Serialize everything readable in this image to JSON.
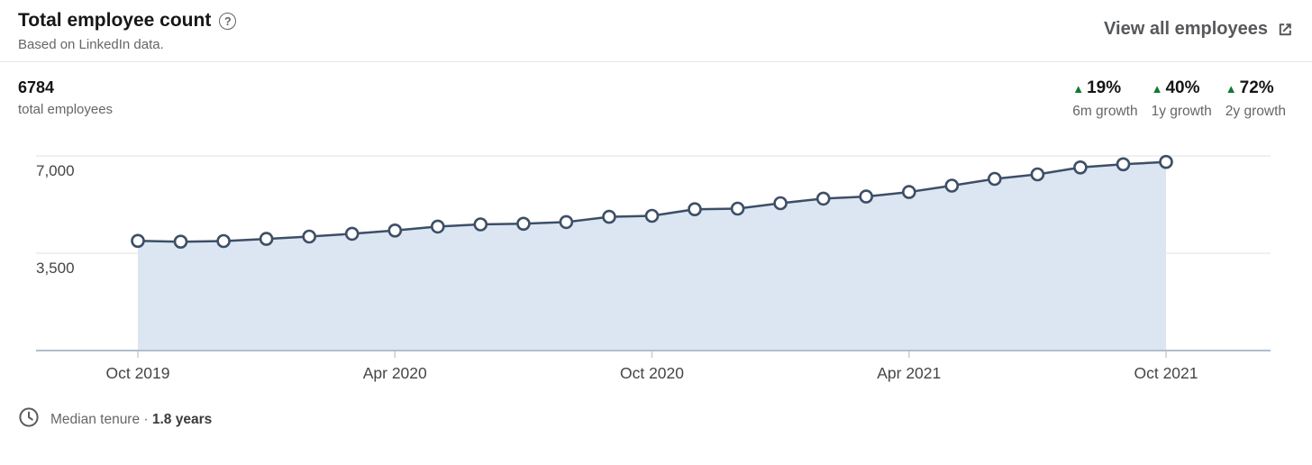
{
  "header": {
    "title": "Total employee count",
    "subtitle": "Based on LinkedIn data.",
    "view_all_label": "View all employees"
  },
  "icons": {
    "help_glyph": "?",
    "up_triangle": "▲"
  },
  "stats": {
    "total_value": "6784",
    "total_label": "total employees",
    "growth": [
      {
        "value": "19%",
        "label": "6m growth",
        "direction": "up"
      },
      {
        "value": "40%",
        "label": "1y growth",
        "direction": "up"
      },
      {
        "value": "72%",
        "label": "2y growth",
        "direction": "up"
      }
    ]
  },
  "colors": {
    "growth_green": "#0e7a31",
    "line": "#3d4f66",
    "area_fill": "#dce6f2",
    "baseline": "#b0becf",
    "gridline": "#e2e2e2",
    "tick": "#cccccc",
    "axis_text": "#454545"
  },
  "chart_data": {
    "type": "area",
    "title": "Total employee count",
    "x": [
      "Oct 2019",
      "Nov 2019",
      "Dec 2019",
      "Jan 2020",
      "Feb 2020",
      "Mar 2020",
      "Apr 2020",
      "May 2020",
      "Jun 2020",
      "Jul 2020",
      "Aug 2020",
      "Sep 2020",
      "Oct 2020",
      "Nov 2020",
      "Dec 2020",
      "Jan 2021",
      "Feb 2021",
      "Mar 2021",
      "Apr 2021",
      "May 2021",
      "Jun 2021",
      "Jul 2021",
      "Aug 2021",
      "Sep 2021",
      "Oct 2021"
    ],
    "values": [
      3944,
      3915,
      3936,
      4014,
      4099,
      4200,
      4318,
      4459,
      4537,
      4560,
      4621,
      4808,
      4846,
      5081,
      5103,
      5299,
      5463,
      5538,
      5701,
      5931,
      6173,
      6337,
      6585,
      6700,
      6784
    ],
    "ylabel": "",
    "xlabel": "",
    "ylim": [
      0,
      7500
    ],
    "y_scale_max": 7000,
    "y_ticks": [
      7000,
      3500
    ],
    "y_tick_labels": [
      "7,000",
      "3,500"
    ],
    "x_tick_indices": [
      0,
      6,
      12,
      18,
      24
    ],
    "x_tick_labels": [
      "Oct 2019",
      "Apr 2020",
      "Oct 2020",
      "Apr 2021",
      "Oct 2021"
    ],
    "grid": "horizontal",
    "legend": "none",
    "marker": "circle-open"
  },
  "footer": {
    "median_tenure_label": "Median tenure ·",
    "median_tenure_value": "1.8 years"
  }
}
